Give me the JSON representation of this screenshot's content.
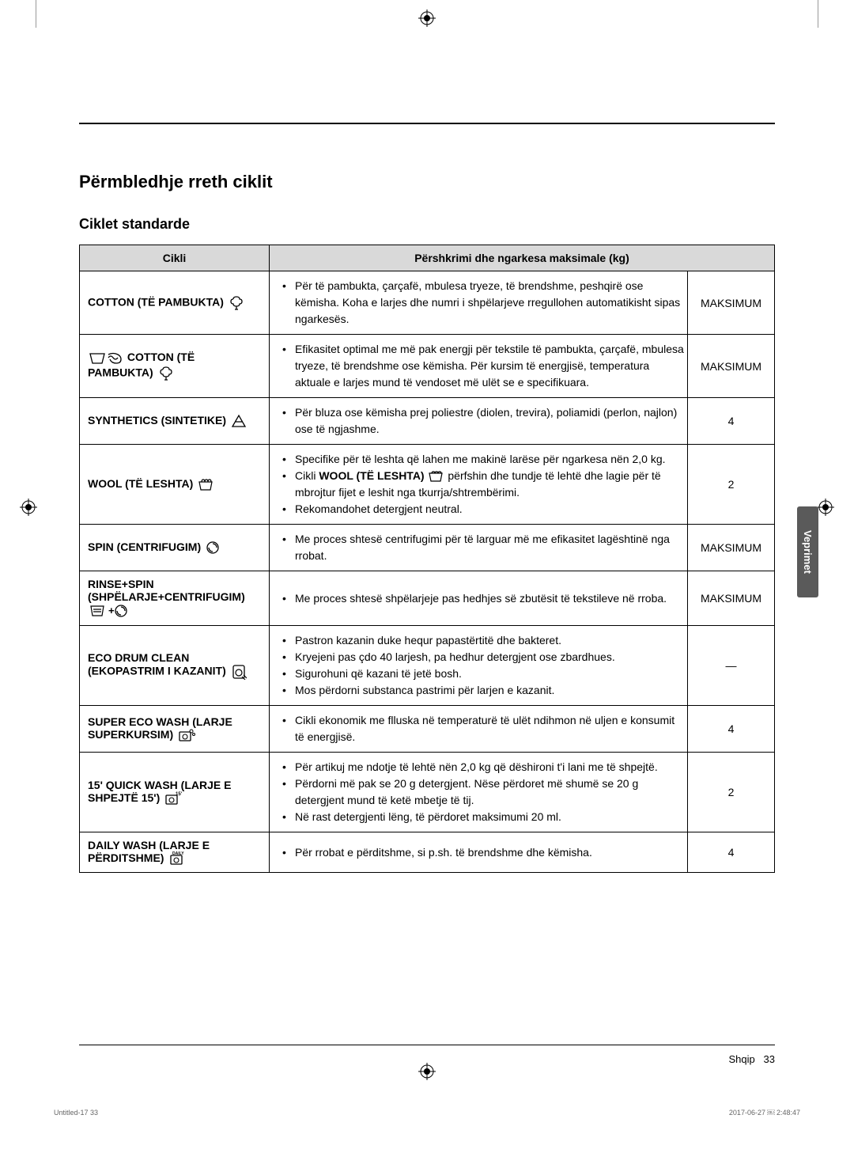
{
  "sectionTitle": "Përmbledhje rreth ciklit",
  "subsectionTitle": "Ciklet standarde",
  "headers": {
    "cycle": "Cikli",
    "desc": "Përshkrimi dhe ngarkesa maksimale (kg)"
  },
  "rows": [
    {
      "cycle": "COTTON (TË PAMBUKTA)",
      "iconSvg": "cotton",
      "items": [
        "Për të pambukta, çarçafë, mbulesa tryeze, të brendshme, peshqirë ose këmisha. Koha e larjes dhe numri i shpëlarjeve rregullohen automatikisht sipas ngarkesës."
      ],
      "load": "MAKSIMUM"
    },
    {
      "cycle": "COTTON (TË PAMBUKTA)",
      "iconSvgPre": "basin-eco",
      "iconSvg": "cotton",
      "items": [
        "Efikasitet optimal me më pak energji për tekstile të pambukta, çarçafë, mbulesa tryeze, të brendshme ose këmisha. Për kursim të energjisë, temperatura aktuale e larjes mund të vendoset më ulët se e specifikuara."
      ],
      "load": "MAKSIMUM"
    },
    {
      "cycle": "SYNTHETICS (SINTETIKE)",
      "iconSvg": "synthetics",
      "items": [
        "Për bluza ose këmisha prej poliestre (diolen, trevira), poliamidi (perlon, najlon) ose të ngjashme."
      ],
      "load": "4"
    },
    {
      "cycle": "WOOL (TË LESHTA)",
      "iconSvg": "wool",
      "htmlItems": [
        "Specifike për të leshta që lahen me makinë larëse për ngarkesa nën 2,0 kg.",
        "Cikli <span class=\"inline-strong\">WOOL (TË LESHTA)</span> <svg class=\"icon\" width=\"18\" height=\"14\" viewBox=\"0 0 18 14\"><path d=\"M1 3 L17 3 L15 13 L3 13 Z M4 3 Q4 1 6 1 Q8 1 8 3 M8 3 Q8 1 10 1 Q12 1 12 3 M12 3 Q12 1 14 1 Q16 1 16 3\" fill=\"none\" stroke=\"#000\" stroke-width=\"1.2\"/></svg> përfshin dhe tundje të lehtë dhe lagie për të mbrojtur fijet e leshit nga tkurrja/shtrembërimi.",
        "Rekomandohet detergjent neutral."
      ],
      "load": "2"
    },
    {
      "cycle": "SPIN (CENTRIFUGIM)",
      "iconSvg": "spin",
      "items": [
        "Me proces shtesë centrifugimi për të larguar më me efikasitet lagështinë nga rrobat."
      ],
      "load": "MAKSIMUM"
    },
    {
      "cycle": "RINSE+SPIN (SHPËLARJE+CENTRIFUGIM)",
      "iconSvg": "rinse-spin",
      "items": [
        "Me proces shtesë shpëlarjeje pas hedhjes së zbutësit të tekstileve në rroba."
      ],
      "load": "MAKSIMUM"
    },
    {
      "cycle": "ECO DRUM CLEAN (EKOPASTRIM I KAZANIT)",
      "iconSvg": "ecodrum",
      "items": [
        "Pastron kazanin duke hequr papastërtitë dhe bakteret.",
        "Kryejeni pas çdo 40 larjesh, pa hedhur detergjent ose zbardhues.",
        "Sigurohuni që kazani të jetë bosh.",
        "Mos përdorni substanca pastrimi për larjen e kazanit."
      ],
      "load": "—"
    },
    {
      "cycle": "SUPER ECO WASH (LARJE SUPERKURSIM)",
      "iconSvg": "supereco",
      "items": [
        "Cikli ekonomik me flluska në temperaturë të ulët ndihmon në uljen e konsumit të energjisë."
      ],
      "load": "4"
    },
    {
      "cycle": "15' QUICK WASH (LARJE E SHPEJTË 15')",
      "iconSvg": "quick",
      "items": [
        "Për artikuj me ndotje të lehtë nën 2,0 kg që dëshironi t'i lani me të shpejtë.",
        "Përdorni më pak se 20 g detergjent. Nëse përdoret më shumë se 20 g detergjent mund të ketë mbetje të tij.",
        "Në rast detergjenti lëng, të përdoret maksimumi 20 ml."
      ],
      "load": "2"
    },
    {
      "cycle": "DAILY WASH (LARJE E PËRDITSHME)",
      "iconSvg": "daily",
      "items": [
        "Për rrobat e përditshme, si p.sh. të brendshme dhe këmisha."
      ],
      "load": "4"
    }
  ],
  "sideTab": "Veprimet",
  "pageLabel": "Shqip",
  "pageNum": "33",
  "footerLeft": "Untitled-17   33",
  "footerRight": "2017-06-27   ￼ 2:48:47"
}
